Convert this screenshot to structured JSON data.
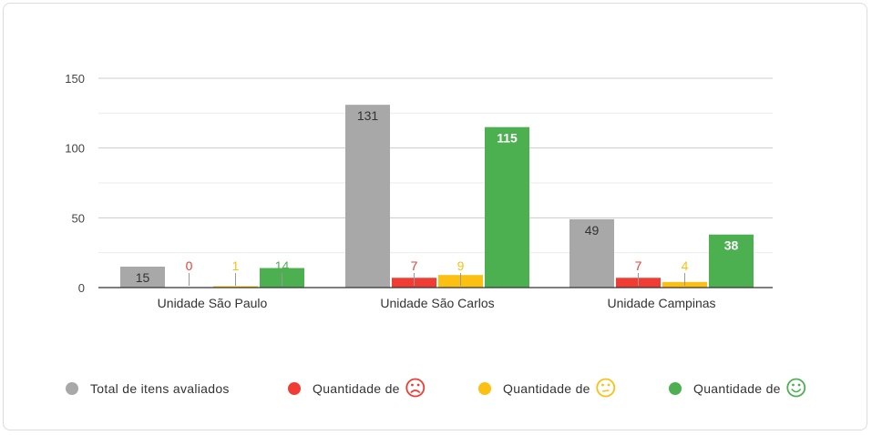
{
  "chart_data": {
    "type": "bar",
    "categories": [
      "Unidade São Paulo",
      "Unidade São Carlos",
      "Unidade Campinas"
    ],
    "series": [
      {
        "name": "Total de itens avaliados",
        "color": "#a8a8a8",
        "values": [
          15,
          131,
          49
        ],
        "icon": ""
      },
      {
        "name": "Quantidade de",
        "color": "#f03c32",
        "values": [
          0,
          7,
          7
        ],
        "icon": "sad-face-icon"
      },
      {
        "name": "Quantidade de",
        "color": "#fcc012",
        "values": [
          1,
          9,
          4
        ],
        "icon": "neutral-face-icon"
      },
      {
        "name": "Quantidade de",
        "color": "#4caf50",
        "values": [
          14,
          115,
          38
        ],
        "icon": "happy-face-icon"
      }
    ],
    "yticks": [
      0,
      50,
      100,
      150
    ],
    "ylim": [
      0,
      150
    ],
    "grid": true,
    "legend": "bottom"
  }
}
